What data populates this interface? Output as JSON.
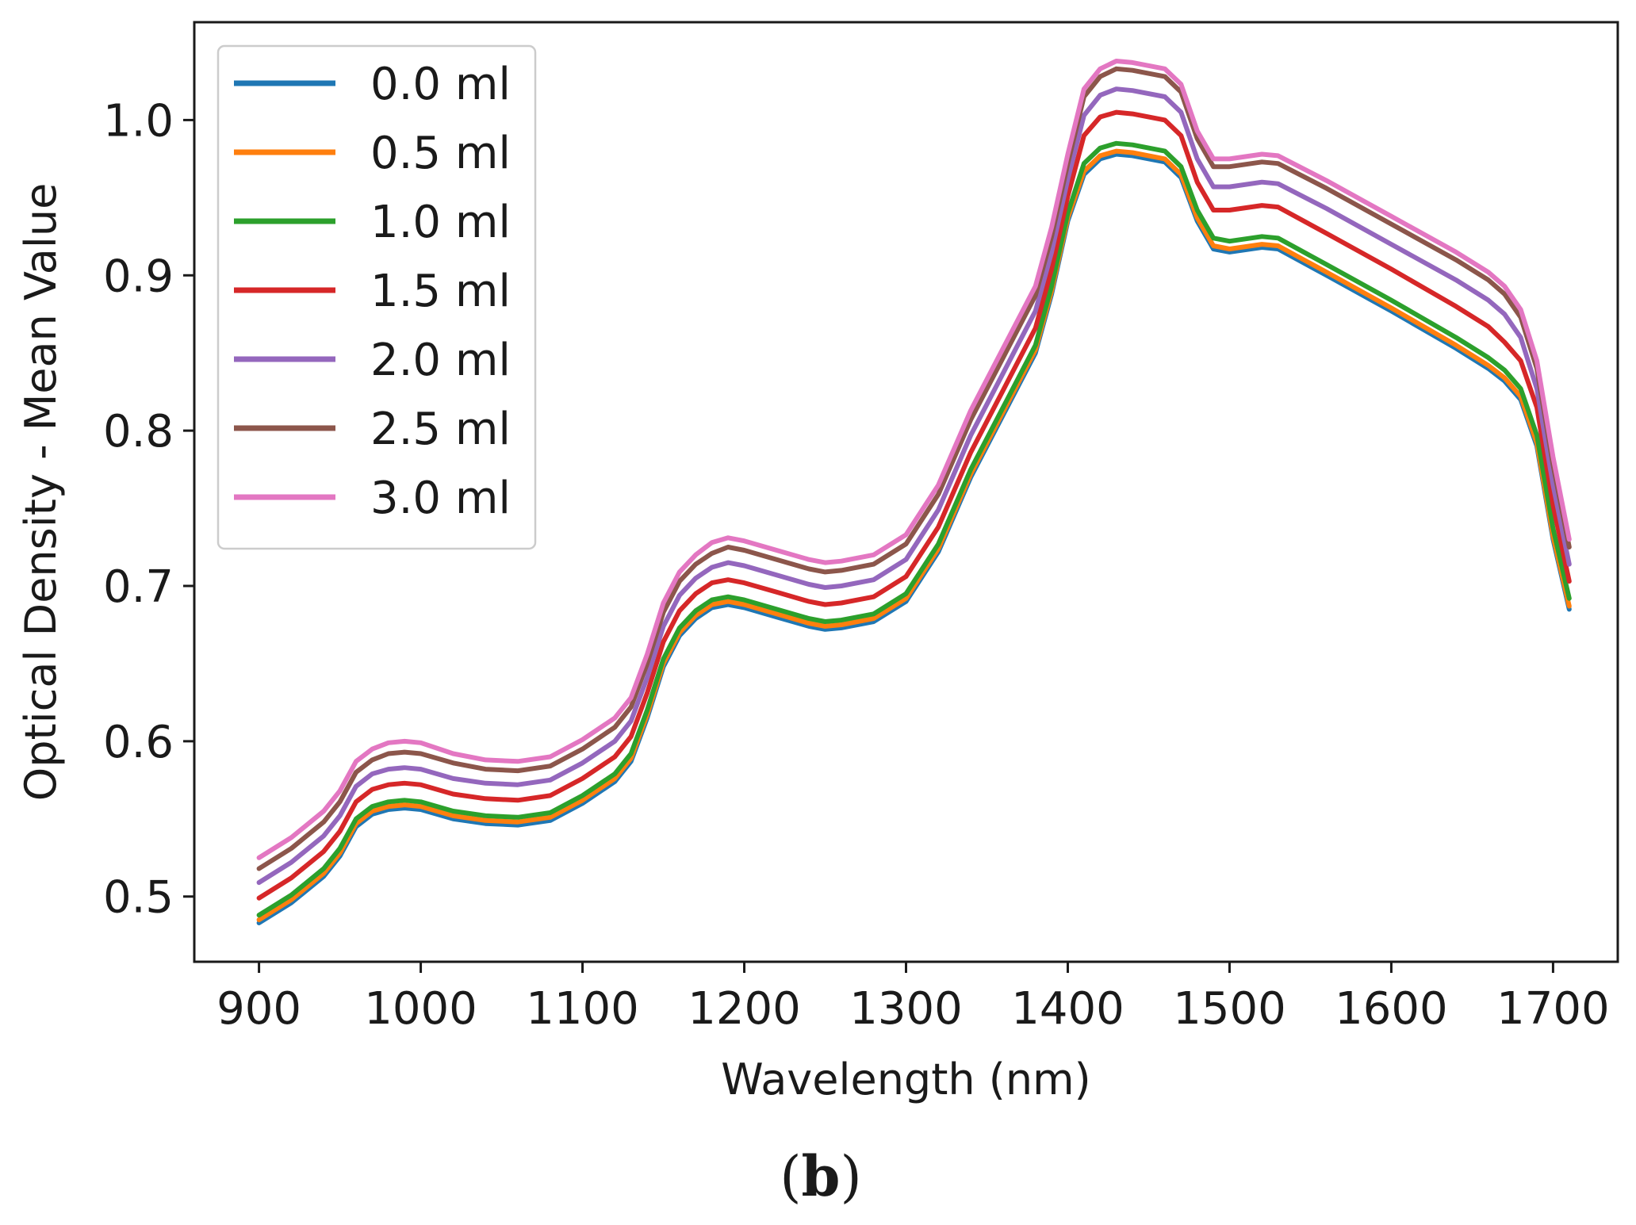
{
  "chart_data": {
    "type": "line",
    "title": "",
    "xlabel": "Wavelength (nm)",
    "ylabel": "Optical Density - Mean Value",
    "xlim": [
      860,
      1740
    ],
    "ylim": [
      0.458,
      1.063
    ],
    "xticks": [
      900,
      1000,
      1100,
      1200,
      1300,
      1400,
      1500,
      1600,
      1700
    ],
    "xtick_labels": [
      "900",
      "1000",
      "1100",
      "1200",
      "1300",
      "1400",
      "1500",
      "1600",
      "1700"
    ],
    "yticks": [
      0.5,
      0.6,
      0.7,
      0.8,
      0.9,
      1.0
    ],
    "ytick_labels": [
      "0.5",
      "0.6",
      "0.7",
      "0.8",
      "0.9",
      "1.0"
    ],
    "grid": false,
    "legend_position": "top-left",
    "x": [
      900,
      920,
      940,
      950,
      960,
      970,
      980,
      990,
      1000,
      1020,
      1040,
      1060,
      1080,
      1100,
      1120,
      1130,
      1140,
      1150,
      1160,
      1170,
      1180,
      1190,
      1200,
      1220,
      1240,
      1250,
      1260,
      1280,
      1300,
      1320,
      1340,
      1360,
      1380,
      1390,
      1400,
      1410,
      1420,
      1430,
      1440,
      1460,
      1470,
      1480,
      1490,
      1500,
      1520,
      1530,
      1560,
      1600,
      1640,
      1660,
      1670,
      1680,
      1690,
      1700,
      1710
    ],
    "series": [
      {
        "name": "0.0 ml",
        "color": "#1f77b4",
        "values": [
          0.483,
          0.496,
          0.513,
          0.526,
          0.545,
          0.553,
          0.556,
          0.557,
          0.556,
          0.55,
          0.547,
          0.546,
          0.549,
          0.56,
          0.574,
          0.587,
          0.615,
          0.648,
          0.668,
          0.679,
          0.686,
          0.688,
          0.686,
          0.68,
          0.674,
          0.672,
          0.673,
          0.677,
          0.69,
          0.722,
          0.77,
          0.81,
          0.85,
          0.888,
          0.935,
          0.965,
          0.975,
          0.978,
          0.977,
          0.973,
          0.963,
          0.935,
          0.917,
          0.915,
          0.918,
          0.917,
          0.9,
          0.877,
          0.853,
          0.84,
          0.832,
          0.82,
          0.79,
          0.73,
          0.685
        ]
      },
      {
        "name": "0.5 ml",
        "color": "#ff7f0e",
        "values": [
          0.485,
          0.498,
          0.515,
          0.528,
          0.547,
          0.555,
          0.558,
          0.559,
          0.558,
          0.552,
          0.549,
          0.548,
          0.551,
          0.562,
          0.576,
          0.589,
          0.617,
          0.65,
          0.67,
          0.681,
          0.688,
          0.69,
          0.688,
          0.682,
          0.676,
          0.674,
          0.675,
          0.679,
          0.692,
          0.724,
          0.772,
          0.812,
          0.852,
          0.89,
          0.937,
          0.967,
          0.977,
          0.98,
          0.979,
          0.975,
          0.965,
          0.937,
          0.919,
          0.917,
          0.92,
          0.919,
          0.902,
          0.879,
          0.855,
          0.842,
          0.834,
          0.822,
          0.792,
          0.732,
          0.687
        ]
      },
      {
        "name": "1.0 ml",
        "color": "#2ca02c",
        "values": [
          0.488,
          0.501,
          0.518,
          0.531,
          0.55,
          0.558,
          0.561,
          0.562,
          0.561,
          0.555,
          0.552,
          0.551,
          0.554,
          0.565,
          0.579,
          0.592,
          0.62,
          0.653,
          0.673,
          0.684,
          0.691,
          0.693,
          0.691,
          0.685,
          0.679,
          0.677,
          0.678,
          0.682,
          0.695,
          0.727,
          0.775,
          0.815,
          0.855,
          0.893,
          0.94,
          0.972,
          0.982,
          0.985,
          0.984,
          0.98,
          0.97,
          0.942,
          0.924,
          0.922,
          0.925,
          0.924,
          0.907,
          0.884,
          0.86,
          0.847,
          0.839,
          0.827,
          0.797,
          0.737,
          0.692
        ]
      },
      {
        "name": "1.5 ml",
        "color": "#d62728",
        "values": [
          0.499,
          0.512,
          0.529,
          0.542,
          0.561,
          0.569,
          0.572,
          0.573,
          0.572,
          0.566,
          0.563,
          0.562,
          0.565,
          0.576,
          0.59,
          0.603,
          0.631,
          0.664,
          0.684,
          0.695,
          0.702,
          0.704,
          0.702,
          0.696,
          0.69,
          0.688,
          0.689,
          0.693,
          0.706,
          0.738,
          0.786,
          0.826,
          0.866,
          0.904,
          0.951,
          0.99,
          1.002,
          1.005,
          1.004,
          1.0,
          0.99,
          0.96,
          0.942,
          0.942,
          0.945,
          0.944,
          0.927,
          0.904,
          0.88,
          0.867,
          0.857,
          0.845,
          0.815,
          0.752,
          0.703
        ]
      },
      {
        "name": "2.0 ml",
        "color": "#9467bd",
        "values": [
          0.509,
          0.522,
          0.539,
          0.552,
          0.571,
          0.579,
          0.582,
          0.583,
          0.582,
          0.576,
          0.573,
          0.572,
          0.575,
          0.586,
          0.6,
          0.613,
          0.641,
          0.674,
          0.694,
          0.705,
          0.712,
          0.715,
          0.713,
          0.707,
          0.701,
          0.699,
          0.7,
          0.704,
          0.717,
          0.749,
          0.797,
          0.837,
          0.877,
          0.915,
          0.962,
          1.003,
          1.016,
          1.02,
          1.019,
          1.015,
          1.005,
          0.975,
          0.957,
          0.957,
          0.96,
          0.959,
          0.943,
          0.92,
          0.897,
          0.884,
          0.875,
          0.86,
          0.827,
          0.765,
          0.714
        ]
      },
      {
        "name": "2.5 ml",
        "color": "#8c564b",
        "values": [
          0.518,
          0.531,
          0.548,
          0.561,
          0.58,
          0.588,
          0.592,
          0.593,
          0.592,
          0.586,
          0.582,
          0.581,
          0.584,
          0.595,
          0.609,
          0.622,
          0.65,
          0.683,
          0.703,
          0.714,
          0.721,
          0.725,
          0.723,
          0.717,
          0.711,
          0.709,
          0.71,
          0.714,
          0.727,
          0.759,
          0.807,
          0.847,
          0.887,
          0.925,
          0.972,
          1.015,
          1.028,
          1.033,
          1.032,
          1.028,
          1.018,
          0.988,
          0.97,
          0.97,
          0.973,
          0.972,
          0.956,
          0.933,
          0.91,
          0.897,
          0.888,
          0.873,
          0.84,
          0.778,
          0.725
        ]
      },
      {
        "name": "3.0 ml",
        "color": "#e377c2",
        "values": [
          0.525,
          0.538,
          0.555,
          0.568,
          0.587,
          0.595,
          0.599,
          0.6,
          0.599,
          0.592,
          0.588,
          0.587,
          0.59,
          0.601,
          0.615,
          0.628,
          0.656,
          0.689,
          0.709,
          0.72,
          0.728,
          0.731,
          0.729,
          0.723,
          0.717,
          0.715,
          0.716,
          0.72,
          0.733,
          0.765,
          0.813,
          0.853,
          0.893,
          0.931,
          0.978,
          1.02,
          1.033,
          1.038,
          1.037,
          1.033,
          1.023,
          0.993,
          0.975,
          0.975,
          0.978,
          0.977,
          0.961,
          0.938,
          0.915,
          0.902,
          0.893,
          0.878,
          0.845,
          0.783,
          0.73
        ]
      }
    ]
  },
  "caption": {
    "open": "(",
    "letter": "b",
    "close": ")"
  }
}
